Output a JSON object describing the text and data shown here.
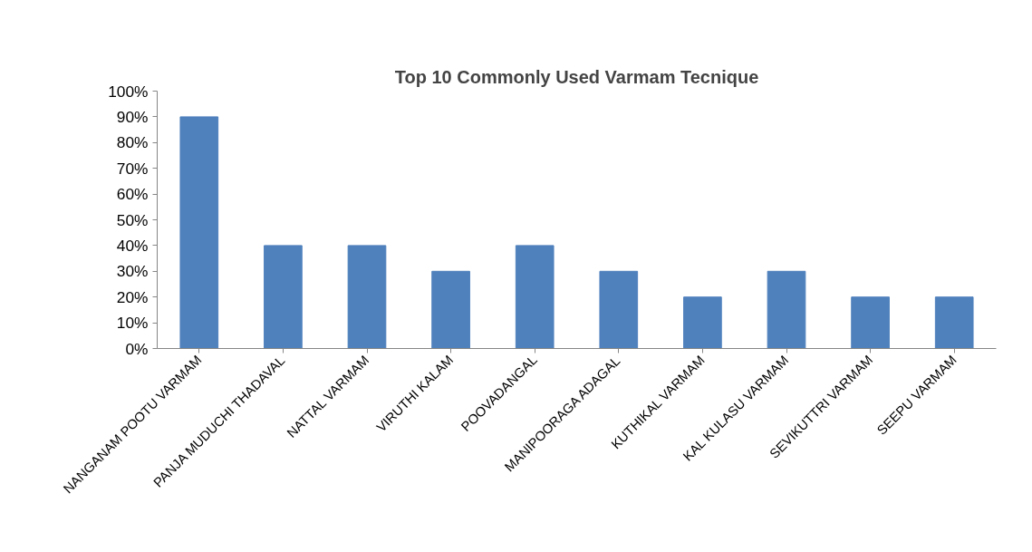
{
  "chart_data": {
    "type": "bar",
    "title": "Top 10 Commonly Used Varmam Tecnique",
    "categories": [
      "NANGANAM POOTU VARMAM",
      "PANJA MUDUCHI THADAVAL",
      "NATTAL VARMAM",
      "VIRUTHI KALAM",
      "POOVADANGAL",
      "MANIPOORAGA ADAGAL",
      "KUTHIKAL VARMAM",
      "KAL KULASU VARMAM",
      "SEVIKUTTRI VARMAM",
      "SEEPU VARMAM"
    ],
    "values": [
      90,
      40,
      40,
      30,
      40,
      30,
      20,
      30,
      20,
      20
    ],
    "color": "#4f81bd",
    "ylim": [
      0,
      100
    ],
    "yticks": [
      {
        "value": 0,
        "label": "0%"
      },
      {
        "value": 10,
        "label": "10%"
      },
      {
        "value": 20,
        "label": "20%"
      },
      {
        "value": 30,
        "label": "30%"
      },
      {
        "value": 40,
        "label": "40%"
      },
      {
        "value": 50,
        "label": "50%"
      },
      {
        "value": 60,
        "label": "60%"
      },
      {
        "value": 70,
        "label": "70%"
      },
      {
        "value": 80,
        "label": "80%"
      },
      {
        "value": 90,
        "label": "90%"
      },
      {
        "value": 100,
        "label": "100%"
      }
    ],
    "grid": false
  }
}
